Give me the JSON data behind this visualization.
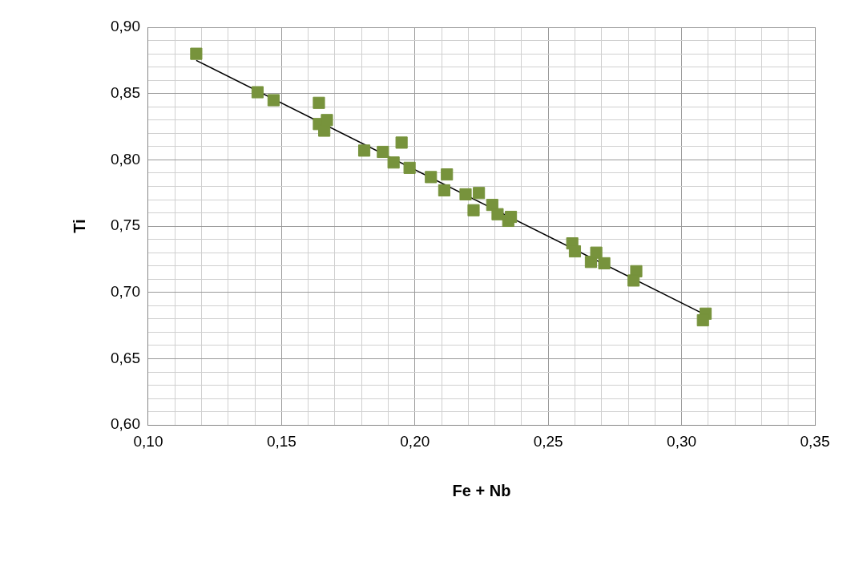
{
  "chart_data": {
    "type": "scatter",
    "xlabel": "Fe + Nb",
    "ylabel": "Ti",
    "legend": false,
    "grid": true,
    "marker": "square",
    "xlim": [
      0.1,
      0.35
    ],
    "ylim": [
      0.6,
      0.9
    ],
    "xticks": [
      {
        "value": 0.1,
        "label": "0,10"
      },
      {
        "value": 0.11,
        "label": null
      },
      {
        "value": 0.12,
        "label": null
      },
      {
        "value": 0.13,
        "label": null
      },
      {
        "value": 0.14,
        "label": null
      },
      {
        "value": 0.15,
        "label": "0,15"
      },
      {
        "value": 0.16,
        "label": null
      },
      {
        "value": 0.17,
        "label": null
      },
      {
        "value": 0.18,
        "label": null
      },
      {
        "value": 0.19,
        "label": null
      },
      {
        "value": 0.2,
        "label": "0,20"
      },
      {
        "value": 0.21,
        "label": null
      },
      {
        "value": 0.22,
        "label": null
      },
      {
        "value": 0.23,
        "label": null
      },
      {
        "value": 0.24,
        "label": null
      },
      {
        "value": 0.25,
        "label": "0,25"
      },
      {
        "value": 0.26,
        "label": null
      },
      {
        "value": 0.27,
        "label": null
      },
      {
        "value": 0.28,
        "label": null
      },
      {
        "value": 0.29,
        "label": null
      },
      {
        "value": 0.3,
        "label": "0,30"
      },
      {
        "value": 0.31,
        "label": null
      },
      {
        "value": 0.32,
        "label": null
      },
      {
        "value": 0.33,
        "label": null
      },
      {
        "value": 0.34,
        "label": null
      },
      {
        "value": 0.35,
        "label": "0,35"
      }
    ],
    "yticks": [
      {
        "value": 0.6,
        "label": "0,60"
      },
      {
        "value": 0.61,
        "label": null
      },
      {
        "value": 0.62,
        "label": null
      },
      {
        "value": 0.63,
        "label": null
      },
      {
        "value": 0.64,
        "label": null
      },
      {
        "value": 0.65,
        "label": "0,65"
      },
      {
        "value": 0.66,
        "label": null
      },
      {
        "value": 0.67,
        "label": null
      },
      {
        "value": 0.68,
        "label": null
      },
      {
        "value": 0.69,
        "label": null
      },
      {
        "value": 0.7,
        "label": "0,70"
      },
      {
        "value": 0.71,
        "label": null
      },
      {
        "value": 0.72,
        "label": null
      },
      {
        "value": 0.73,
        "label": null
      },
      {
        "value": 0.74,
        "label": null
      },
      {
        "value": 0.75,
        "label": "0,75"
      },
      {
        "value": 0.76,
        "label": null
      },
      {
        "value": 0.77,
        "label": null
      },
      {
        "value": 0.78,
        "label": null
      },
      {
        "value": 0.79,
        "label": null
      },
      {
        "value": 0.8,
        "label": "0,80"
      },
      {
        "value": 0.81,
        "label": null
      },
      {
        "value": 0.82,
        "label": null
      },
      {
        "value": 0.83,
        "label": null
      },
      {
        "value": 0.84,
        "label": null
      },
      {
        "value": 0.85,
        "label": "0,85"
      },
      {
        "value": 0.86,
        "label": null
      },
      {
        "value": 0.87,
        "label": null
      },
      {
        "value": 0.88,
        "label": null
      },
      {
        "value": 0.89,
        "label": null
      },
      {
        "value": 0.9,
        "label": "0,90"
      }
    ],
    "series": [
      {
        "type": "scatter",
        "color": "#77933c",
        "x": [
          0.118,
          0.141,
          0.147,
          0.164,
          0.164,
          0.166,
          0.167,
          0.181,
          0.188,
          0.195,
          0.192,
          0.198,
          0.206,
          0.212,
          0.211,
          0.219,
          0.224,
          0.222,
          0.229,
          0.231,
          0.235,
          0.236,
          0.259,
          0.26,
          0.266,
          0.268,
          0.271,
          0.283,
          0.282,
          0.309,
          0.308
        ],
        "values": [
          0.88,
          0.851,
          0.845,
          0.843,
          0.827,
          0.822,
          0.83,
          0.807,
          0.806,
          0.813,
          0.798,
          0.794,
          0.787,
          0.789,
          0.777,
          0.774,
          0.775,
          0.762,
          0.766,
          0.759,
          0.754,
          0.757,
          0.737,
          0.731,
          0.723,
          0.73,
          0.722,
          0.716,
          0.709,
          0.684,
          0.679
        ]
      },
      {
        "type": "line",
        "color": "#000000",
        "marker": "none",
        "x": [
          0.118,
          0.309
        ],
        "values": [
          0.875,
          0.683
        ]
      }
    ]
  }
}
